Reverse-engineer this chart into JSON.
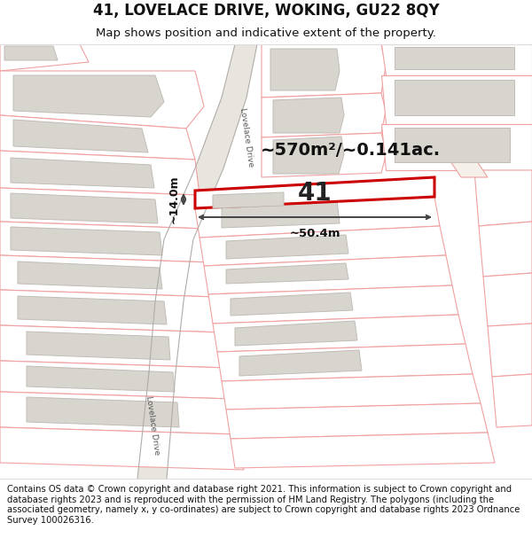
{
  "title": "41, LOVELACE DRIVE, WOKING, GU22 8QY",
  "subtitle": "Map shows position and indicative extent of the property.",
  "footer": "Contains OS data © Crown copyright and database right 2021. This information is subject to Crown copyright and database rights 2023 and is reproduced with the permission of HM Land Registry. The polygons (including the associated geometry, namely x, y co-ordinates) are subject to Crown copyright and database rights 2023 Ordnance Survey 100026316.",
  "area_text": "~570m²/~0.141ac.",
  "width_label": "~50.4m",
  "height_label": "~14.0m",
  "number_label": "41",
  "map_bg": "#ffffff",
  "plot_border": "#cc0000",
  "building_fill": "#d8d4ce",
  "building_border": "#c0bcb6",
  "plot_line_color": "#f0a0a0",
  "dimension_color": "#444444",
  "title_fontsize": 12,
  "subtitle_fontsize": 9.5,
  "footer_fontsize": 7.2
}
